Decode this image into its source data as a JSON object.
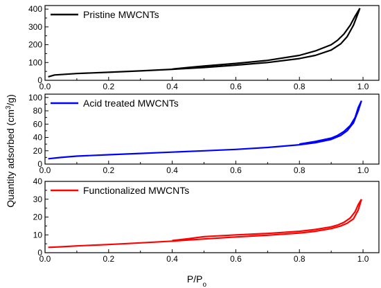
{
  "chart_data": {
    "type": "line",
    "shared_xlabel_main": "P/P",
    "shared_xlabel_sub": "o",
    "shared_ylabel_main": "Quantity adsorbed (cm",
    "shared_ylabel_sup": "3",
    "shared_ylabel_end": "/g)",
    "panels": [
      {
        "legend": "Pristine MWCNTs",
        "color": "#000000",
        "xlim": [
          0.0,
          1.05
        ],
        "ylim": [
          0,
          420
        ],
        "yticks": [
          "0",
          "100",
          "200",
          "300",
          "400"
        ],
        "xticks": [
          "0.0",
          "0.2",
          "0.4",
          "0.6",
          "0.8",
          "1.0"
        ],
        "adsorption": [
          [
            0.01,
            20
          ],
          [
            0.03,
            30
          ],
          [
            0.1,
            38
          ],
          [
            0.2,
            45
          ],
          [
            0.3,
            53
          ],
          [
            0.4,
            62
          ],
          [
            0.5,
            72
          ],
          [
            0.6,
            85
          ],
          [
            0.7,
            100
          ],
          [
            0.8,
            122
          ],
          [
            0.85,
            140
          ],
          [
            0.9,
            170
          ],
          [
            0.93,
            205
          ],
          [
            0.95,
            245
          ],
          [
            0.97,
            310
          ],
          [
            0.985,
            380
          ],
          [
            0.99,
            405
          ]
        ],
        "desorption": [
          [
            0.99,
            405
          ],
          [
            0.975,
            360
          ],
          [
            0.96,
            310
          ],
          [
            0.94,
            260
          ],
          [
            0.92,
            225
          ],
          [
            0.9,
            200
          ],
          [
            0.85,
            165
          ],
          [
            0.8,
            140
          ],
          [
            0.7,
            112
          ],
          [
            0.6,
            95
          ],
          [
            0.5,
            80
          ],
          [
            0.45,
            72
          ],
          [
            0.4,
            63
          ]
        ]
      },
      {
        "legend": "Acid treated MWCNTs",
        "color": "#0000ff",
        "xlim": [
          0.0,
          1.05
        ],
        "ylim": [
          0,
          105
        ],
        "yticks": [
          "0",
          "20",
          "40",
          "60",
          "80",
          "100"
        ],
        "xticks": [
          "0.0",
          "0.2",
          "0.4",
          "0.6",
          "0.8",
          "1.0"
        ],
        "adsorption": [
          [
            0.01,
            8
          ],
          [
            0.05,
            10
          ],
          [
            0.1,
            12
          ],
          [
            0.2,
            14
          ],
          [
            0.3,
            16
          ],
          [
            0.4,
            18
          ],
          [
            0.5,
            20
          ],
          [
            0.6,
            22
          ],
          [
            0.7,
            25
          ],
          [
            0.8,
            29
          ],
          [
            0.85,
            32
          ],
          [
            0.9,
            37
          ],
          [
            0.93,
            43
          ],
          [
            0.95,
            50
          ],
          [
            0.97,
            62
          ],
          [
            0.985,
            80
          ],
          [
            0.995,
            95
          ]
        ],
        "desorption": [
          [
            0.995,
            95
          ],
          [
            0.985,
            85
          ],
          [
            0.975,
            70
          ],
          [
            0.96,
            58
          ],
          [
            0.94,
            49
          ],
          [
            0.92,
            43
          ],
          [
            0.9,
            39
          ],
          [
            0.85,
            34
          ],
          [
            0.8,
            30
          ]
        ]
      },
      {
        "legend": "Functionalized MWCNTs",
        "color": "#ff0000",
        "xlim": [
          0.0,
          1.05
        ],
        "ylim": [
          0,
          40
        ],
        "yticks": [
          "0",
          "10",
          "20",
          "30",
          "40"
        ],
        "xticks": [
          "0.0",
          "0.2",
          "0.4",
          "0.6",
          "0.8",
          "1.0"
        ],
        "adsorption": [
          [
            0.01,
            3
          ],
          [
            0.05,
            3.3
          ],
          [
            0.1,
            3.8
          ],
          [
            0.2,
            4.6
          ],
          [
            0.3,
            5.5
          ],
          [
            0.4,
            6.5
          ],
          [
            0.5,
            7.7
          ],
          [
            0.6,
            8.8
          ],
          [
            0.7,
            9.8
          ],
          [
            0.8,
            11
          ],
          [
            0.85,
            12
          ],
          [
            0.9,
            13.5
          ],
          [
            0.93,
            15
          ],
          [
            0.95,
            16.5
          ],
          [
            0.97,
            19
          ],
          [
            0.985,
            24
          ],
          [
            0.995,
            30
          ]
        ],
        "desorption": [
          [
            0.995,
            30
          ],
          [
            0.985,
            27
          ],
          [
            0.975,
            23
          ],
          [
            0.96,
            19.5
          ],
          [
            0.94,
            17
          ],
          [
            0.92,
            15.5
          ],
          [
            0.9,
            14.5
          ],
          [
            0.85,
            13
          ],
          [
            0.8,
            12
          ],
          [
            0.7,
            10.8
          ],
          [
            0.6,
            10
          ],
          [
            0.5,
            9
          ],
          [
            0.45,
            7.8
          ],
          [
            0.4,
            6.8
          ]
        ]
      }
    ]
  }
}
